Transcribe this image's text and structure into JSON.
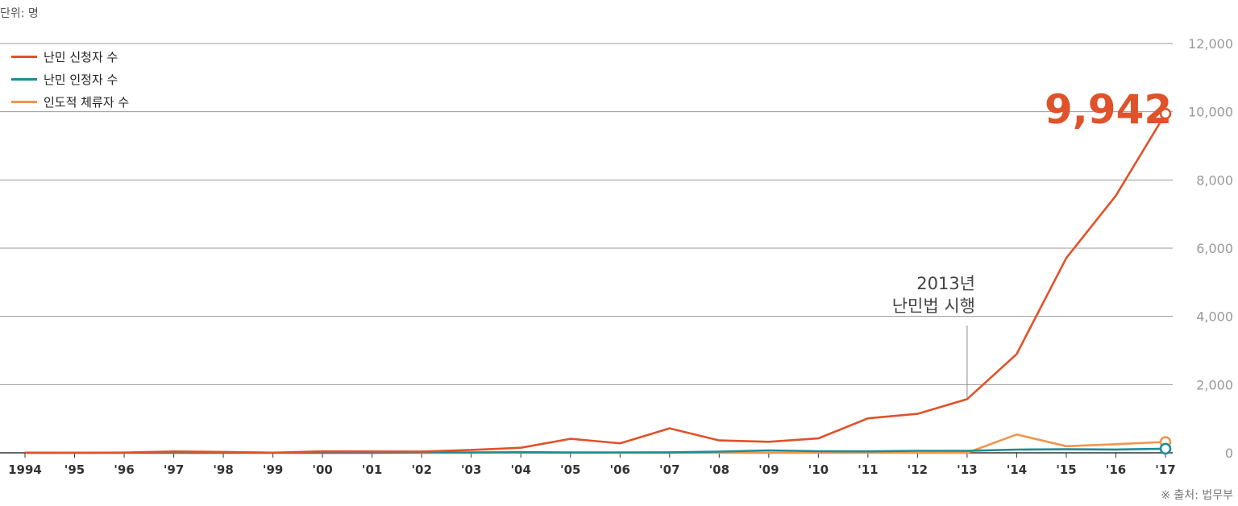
{
  "unit_label": "단위: 명",
  "source_label": "※ 출처: 법무부",
  "annotation": {
    "line1": "2013년",
    "line2": "난민법 시행",
    "x": "'13"
  },
  "callout": {
    "text": "9,942",
    "color": "#e0522a"
  },
  "legend": [
    {
      "label": "난민 신청자 수",
      "color": "#e0522a"
    },
    {
      "label": "난민 인정자 수",
      "color": "#1d8c94"
    },
    {
      "label": "인도적 체류자 수",
      "color": "#f2954c"
    }
  ],
  "chart_data": {
    "type": "line",
    "categories": [
      "1994",
      "'95",
      "'96",
      "'97",
      "'98",
      "'99",
      "'00",
      "'01",
      "'02",
      "'03",
      "'04",
      "'05",
      "'06",
      "'07",
      "'08",
      "'09",
      "'10",
      "'11",
      "'12",
      "'13",
      "'14",
      "'15",
      "'16",
      "'17"
    ],
    "y_ticks": [
      "0",
      "2,000",
      "4,000",
      "6,000",
      "8,000",
      "10,000",
      "12,000"
    ],
    "ylim": [
      0,
      12000
    ],
    "grid": true,
    "y_axis_side": "right",
    "legend_position": "top-left",
    "series": [
      {
        "name": "난민 신청자 수",
        "color": "#e0522a",
        "values": [
          5,
          2,
          6,
          41,
          26,
          4,
          43,
          39,
          37,
          84,
          148,
          412,
          278,
          717,
          364,
          324,
          423,
          1011,
          1143,
          1574,
          2896,
          5711,
          7541,
          9942
        ]
      },
      {
        "name": "난민 인정자 수",
        "color": "#1d8c94",
        "values": [
          0,
          0,
          0,
          0,
          0,
          0,
          0,
          1,
          12,
          12,
          18,
          9,
          11,
          13,
          36,
          70,
          47,
          42,
          60,
          57,
          94,
          105,
          98,
          121
        ]
      },
      {
        "name": "인도적 체류자 수",
        "color": "#f2954c",
        "values": [
          0,
          0,
          0,
          0,
          0,
          0,
          0,
          0,
          0,
          0,
          0,
          0,
          0,
          0,
          0,
          0,
          0,
          0,
          0,
          0,
          539,
          194,
          252,
          318
        ]
      }
    ]
  }
}
